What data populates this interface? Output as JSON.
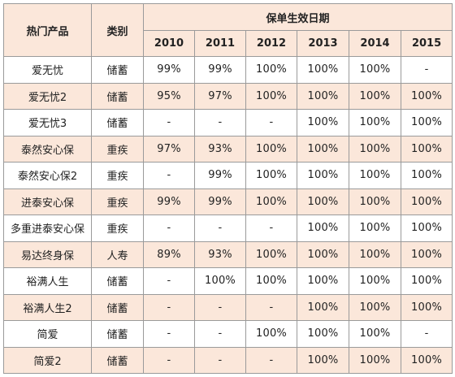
{
  "headers": {
    "product": "热门产品",
    "category": "类别",
    "group": "保单生效日期",
    "years": [
      "2010",
      "2011",
      "2012",
      "2013",
      "2014",
      "2015"
    ]
  },
  "rows": [
    {
      "product": "爱无忧",
      "category": "储蓄",
      "values": [
        "99%",
        "99%",
        "100%",
        "100%",
        "100%",
        "-"
      ]
    },
    {
      "product": "爱无忧2",
      "category": "储蓄",
      "values": [
        "95%",
        "97%",
        "100%",
        "100%",
        "100%",
        "100%"
      ]
    },
    {
      "product": "爱无忧3",
      "category": "储蓄",
      "values": [
        "-",
        "-",
        "-",
        "100%",
        "100%",
        "100%"
      ]
    },
    {
      "product": "泰然安心保",
      "category": "重疾",
      "values": [
        "97%",
        "93%",
        "100%",
        "100%",
        "100%",
        "100%"
      ]
    },
    {
      "product": "泰然安心保2",
      "category": "重疾",
      "values": [
        "-",
        "99%",
        "100%",
        "100%",
        "100%",
        "100%"
      ]
    },
    {
      "product": "进泰安心保",
      "category": "重疾",
      "values": [
        "99%",
        "99%",
        "100%",
        "100%",
        "100%",
        "100%"
      ]
    },
    {
      "product": "多重进泰安心保",
      "category": "重疾",
      "values": [
        "-",
        "-",
        "-",
        "100%",
        "100%",
        "100%"
      ]
    },
    {
      "product": "易达终身保",
      "category": "人寿",
      "values": [
        "89%",
        "93%",
        "100%",
        "100%",
        "100%",
        "100%"
      ]
    },
    {
      "product": "裕满人生",
      "category": "储蓄",
      "values": [
        "-",
        "100%",
        "100%",
        "100%",
        "100%",
        "100%"
      ]
    },
    {
      "product": "裕满人生2",
      "category": "储蓄",
      "values": [
        "-",
        "-",
        "-",
        "100%",
        "100%",
        "100%"
      ]
    },
    {
      "product": "简爱",
      "category": "储蓄",
      "values": [
        "-",
        "-",
        "100%",
        "100%",
        "100%",
        "-"
      ]
    },
    {
      "product": "简爱2",
      "category": "储蓄",
      "values": [
        "-",
        "-",
        "-",
        "100%",
        "100%",
        "100%"
      ]
    }
  ],
  "colors": {
    "header_bg": "#fbe7da",
    "shade_bg": "#fbe7da",
    "border": "#9a9a9a"
  }
}
